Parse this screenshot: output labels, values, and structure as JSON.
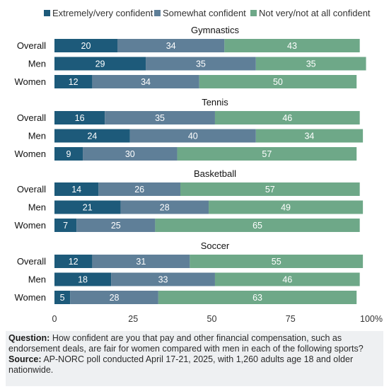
{
  "chart_data": {
    "type": "bar",
    "orientation": "horizontal",
    "stacked": true,
    "title": "",
    "legend": [
      {
        "name": "Extremely/very confident",
        "color": "#1d5a7a"
      },
      {
        "name": "Somewhat confident",
        "color": "#5f7f98"
      },
      {
        "name": "Not very/not at all confident",
        "color": "#6ea888"
      }
    ],
    "legend_placement": "top",
    "xlim": [
      0,
      100
    ],
    "x_ticks": [
      "0",
      "25",
      "50",
      "75",
      "100%"
    ],
    "grid": false,
    "groups": [
      {
        "title": "Gymnastics",
        "rows": [
          {
            "label": "Overall",
            "values": [
              20,
              34,
              43
            ]
          },
          {
            "label": "Men",
            "values": [
              29,
              35,
              35
            ]
          },
          {
            "label": "Women",
            "values": [
              12,
              34,
              50
            ]
          }
        ]
      },
      {
        "title": "Tennis",
        "rows": [
          {
            "label": "Overall",
            "values": [
              16,
              35,
              46
            ]
          },
          {
            "label": "Men",
            "values": [
              24,
              40,
              34
            ]
          },
          {
            "label": "Women",
            "values": [
              9,
              30,
              57
            ]
          }
        ]
      },
      {
        "title": "Basketball",
        "rows": [
          {
            "label": "Overall",
            "values": [
              14,
              26,
              57
            ]
          },
          {
            "label": "Men",
            "values": [
              21,
              28,
              49
            ]
          },
          {
            "label": "Women",
            "values": [
              7,
              25,
              65
            ]
          }
        ]
      },
      {
        "title": "Soccer",
        "rows": [
          {
            "label": "Overall",
            "values": [
              12,
              31,
              55
            ]
          },
          {
            "label": "Men",
            "values": [
              18,
              33,
              46
            ]
          },
          {
            "label": "Women",
            "values": [
              5,
              28,
              63
            ]
          }
        ]
      }
    ]
  },
  "footnote": {
    "question_label": "Question:",
    "question_text": " How confident are you that pay and other financial compensation, such as endorsement deals, are fair for women compared with men in each of the following sports?",
    "source_label": "Source:",
    "source_text": " AP-NORC poll conducted April 17-21, 2025, with 1,260 adults age 18 and older nationwide."
  }
}
